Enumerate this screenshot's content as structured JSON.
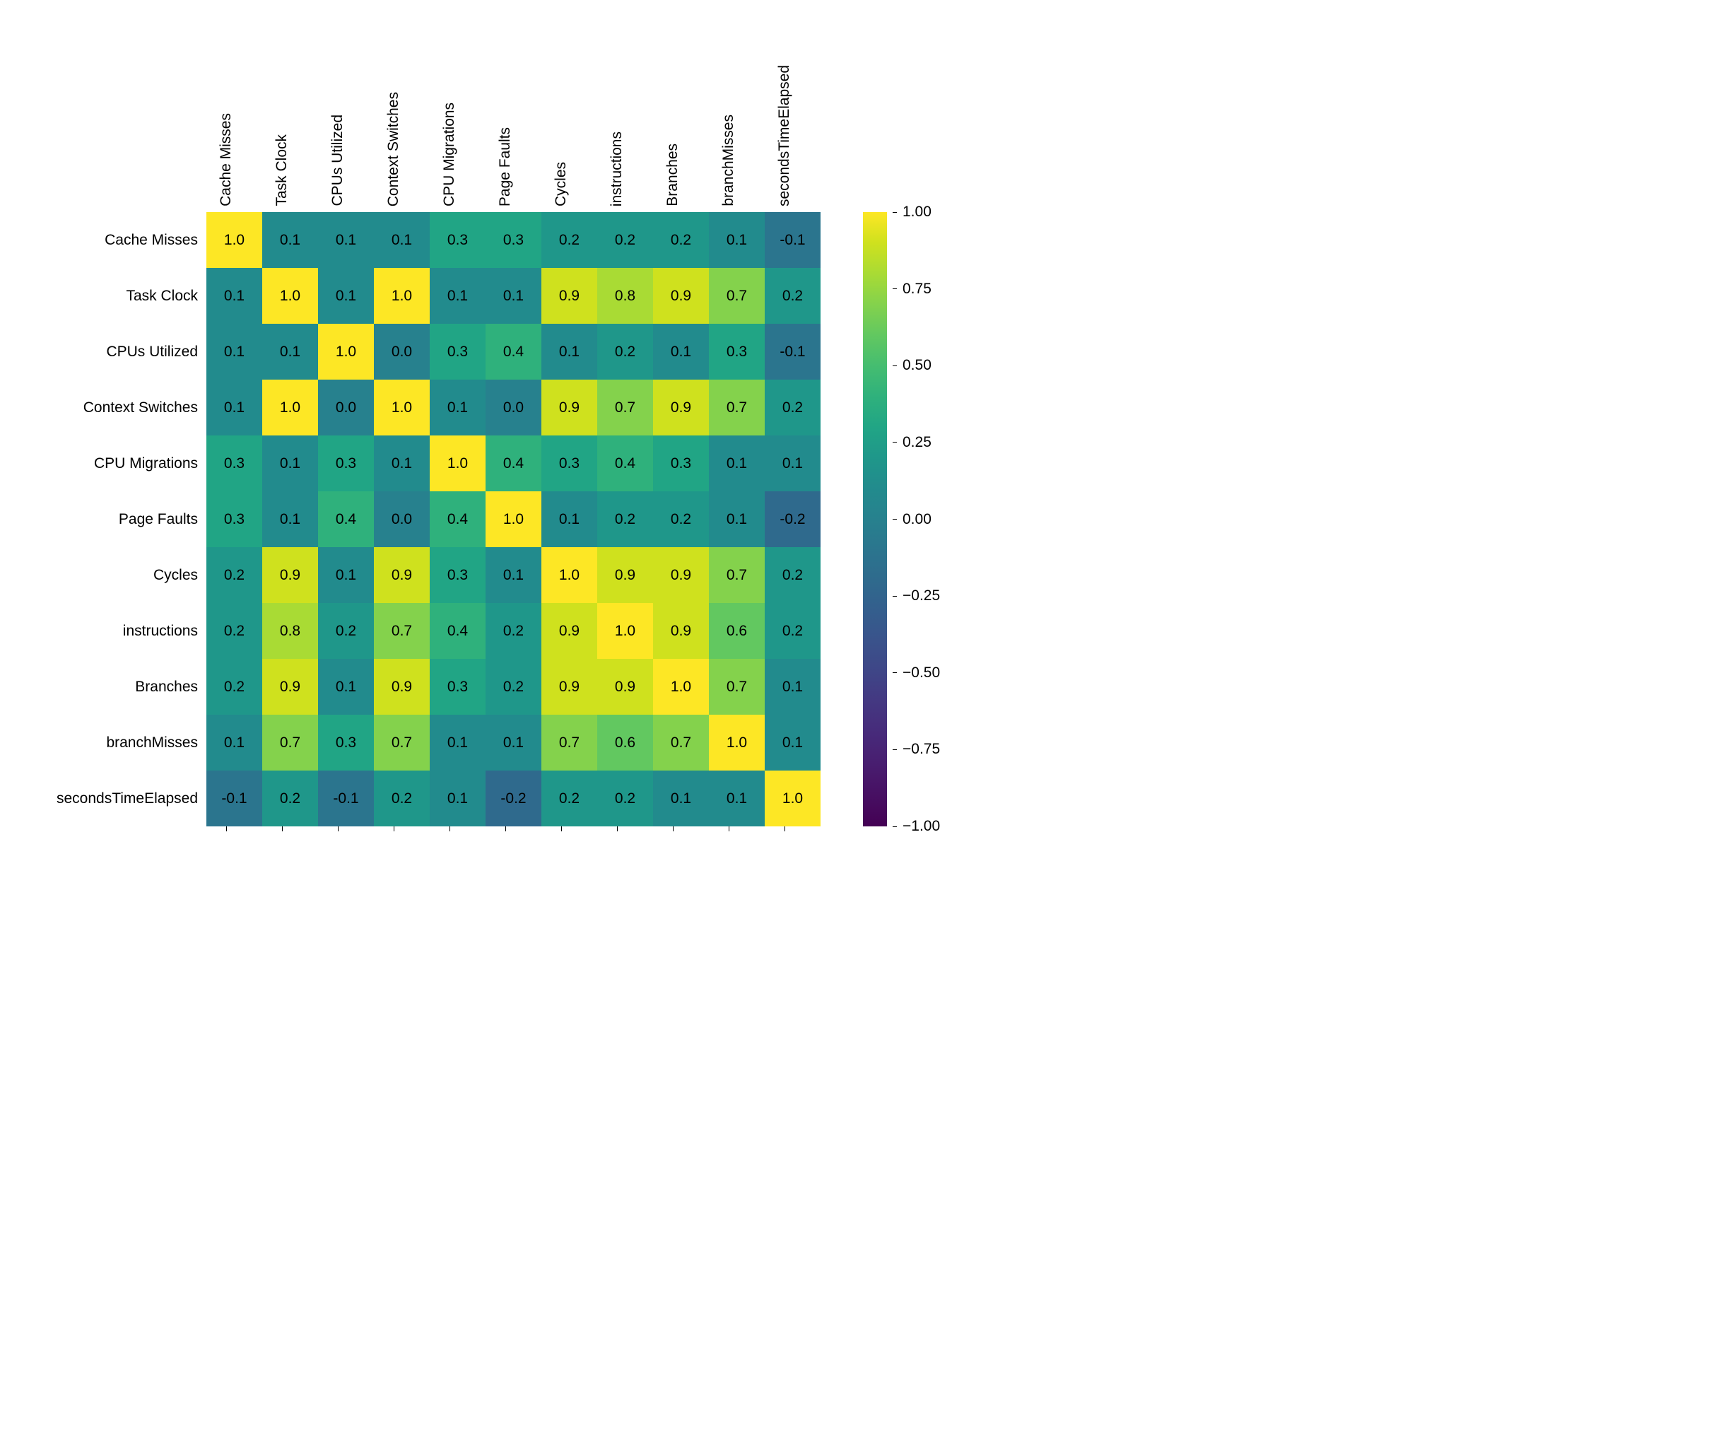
{
  "heatmap": {
    "type": "heatmap",
    "labels": [
      "Cache Misses",
      "Task Clock",
      "CPUs Utilized",
      "Context Switches",
      "CPU Migrations",
      "Page Faults",
      "Cycles",
      "instructions",
      "Branches",
      "branchMisses",
      "secondsTimeElapsed"
    ],
    "values": [
      [
        1.0,
        0.1,
        0.1,
        0.1,
        0.3,
        0.3,
        0.2,
        0.2,
        0.2,
        0.1,
        -0.1
      ],
      [
        0.1,
        1.0,
        0.1,
        1.0,
        0.1,
        0.1,
        0.9,
        0.8,
        0.9,
        0.7,
        0.2
      ],
      [
        0.1,
        0.1,
        1.0,
        0.0,
        0.3,
        0.4,
        0.1,
        0.2,
        0.1,
        0.3,
        -0.1
      ],
      [
        0.1,
        1.0,
        0.0,
        1.0,
        0.1,
        0.0,
        0.9,
        0.7,
        0.9,
        0.7,
        0.2
      ],
      [
        0.3,
        0.1,
        0.3,
        0.1,
        1.0,
        0.4,
        0.3,
        0.4,
        0.3,
        0.1,
        0.1
      ],
      [
        0.3,
        0.1,
        0.4,
        0.0,
        0.4,
        1.0,
        0.1,
        0.2,
        0.2,
        0.1,
        -0.2
      ],
      [
        0.2,
        0.9,
        0.1,
        0.9,
        0.3,
        0.1,
        1.0,
        0.9,
        0.9,
        0.7,
        0.2
      ],
      [
        0.2,
        0.8,
        0.2,
        0.7,
        0.4,
        0.2,
        0.9,
        1.0,
        0.9,
        0.6,
        0.2
      ],
      [
        0.2,
        0.9,
        0.1,
        0.9,
        0.3,
        0.2,
        0.9,
        0.9,
        1.0,
        0.7,
        0.1
      ],
      [
        0.1,
        0.7,
        0.3,
        0.7,
        0.1,
        0.1,
        0.7,
        0.6,
        0.7,
        1.0,
        0.1
      ],
      [
        -0.1,
        0.2,
        -0.1,
        0.2,
        0.1,
        -0.2,
        0.2,
        0.2,
        0.1,
        0.1,
        1.0
      ]
    ],
    "cell_size": 79,
    "vmin": -1.0,
    "vmax": 1.0,
    "cell_fontsize": 21,
    "label_fontsize": 21,
    "tick_fontsize": 21,
    "row_label_width": 240,
    "top_label_height": 260,
    "colorbar": {
      "width": 34,
      "ticks": [
        -1.0,
        -0.75,
        -0.5,
        -0.25,
        0.0,
        0.25,
        0.5,
        0.75,
        1.0
      ],
      "tick_labels": [
        "−1.00",
        "−0.75",
        "−0.50",
        "−0.25",
        "0.00",
        "0.25",
        "0.50",
        "0.75",
        "1.00"
      ]
    },
    "colormap": "viridis",
    "colormap_stops": [
      [
        0.0,
        "#440154"
      ],
      [
        0.05,
        "#470f62"
      ],
      [
        0.1,
        "#481d6f"
      ],
      [
        0.15,
        "#472a7a"
      ],
      [
        0.2,
        "#443781"
      ],
      [
        0.25,
        "#3f4587"
      ],
      [
        0.3,
        "#3a528b"
      ],
      [
        0.35,
        "#345e8d"
      ],
      [
        0.4,
        "#2f6a8d"
      ],
      [
        0.45,
        "#2b758e"
      ],
      [
        0.5,
        "#27818e"
      ],
      [
        0.55,
        "#228b8d"
      ],
      [
        0.6,
        "#1f978a"
      ],
      [
        0.65,
        "#21a585"
      ],
      [
        0.7,
        "#2fb17c"
      ],
      [
        0.75,
        "#45bd70"
      ],
      [
        0.8,
        "#62c860"
      ],
      [
        0.85,
        "#84d24c"
      ],
      [
        0.9,
        "#a9db34"
      ],
      [
        0.95,
        "#cfe11e"
      ],
      [
        1.0,
        "#fde725"
      ]
    ],
    "background_color": "#ffffff"
  }
}
